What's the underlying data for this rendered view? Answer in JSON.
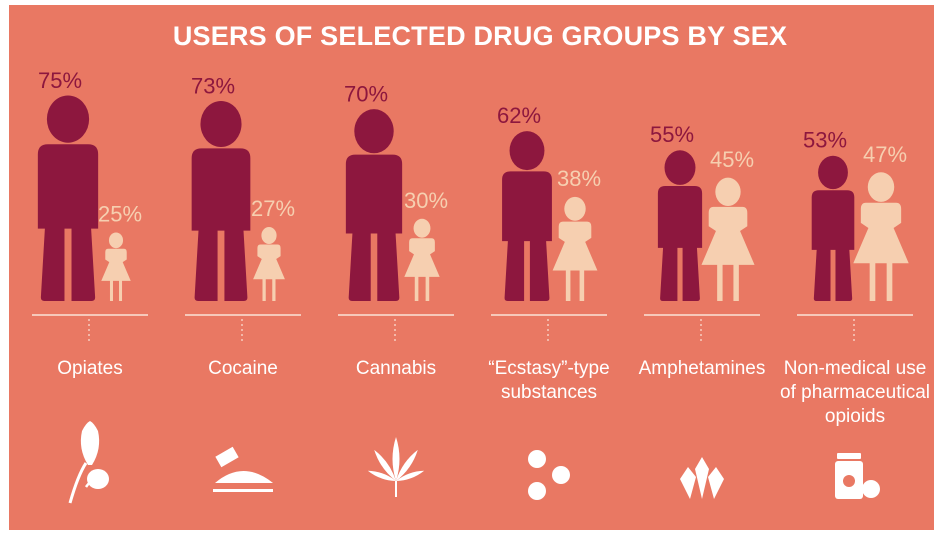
{
  "colors": {
    "background": "#E97863",
    "male": "#8D173E",
    "female": "#F6CFB0",
    "text_light": "#FFFFFF",
    "baseline": "#FBE3D8"
  },
  "chart_data": {
    "type": "bar",
    "title": "USERS OF SELECTED DRUG GROUPS BY SEX",
    "categories": [
      "Opiates",
      "Cocaine",
      "Cannabis",
      "“Ecstasy”-type substances",
      "Amphetamines",
      "Non-medical use of pharmaceutical opioids"
    ],
    "category_lines": [
      [
        "Opiates"
      ],
      [
        "Cocaine"
      ],
      [
        "Cannabis"
      ],
      [
        "“Ecstasy”-type",
        "substances"
      ],
      [
        "Amphetamines"
      ],
      [
        "Non-medical use",
        "of pharmaceutical",
        "opioids"
      ]
    ],
    "series": [
      {
        "name": "male",
        "values": [
          75,
          73,
          70,
          62,
          55,
          53
        ]
      },
      {
        "name": "female",
        "values": [
          25,
          27,
          30,
          38,
          45,
          47
        ]
      }
    ],
    "value_labels": {
      "male": [
        "75%",
        "73%",
        "70%",
        "62%",
        "55%",
        "53%"
      ],
      "female": [
        "25%",
        "27%",
        "30%",
        "38%",
        "45%",
        "47%"
      ]
    },
    "unit": "%",
    "icons": [
      "poppy-icon",
      "cocaine-razor-icon",
      "cannabis-leaf-icon",
      "ecstasy-pills-icon",
      "amphetamine-crystals-icon",
      "pill-bottle-icon"
    ]
  }
}
